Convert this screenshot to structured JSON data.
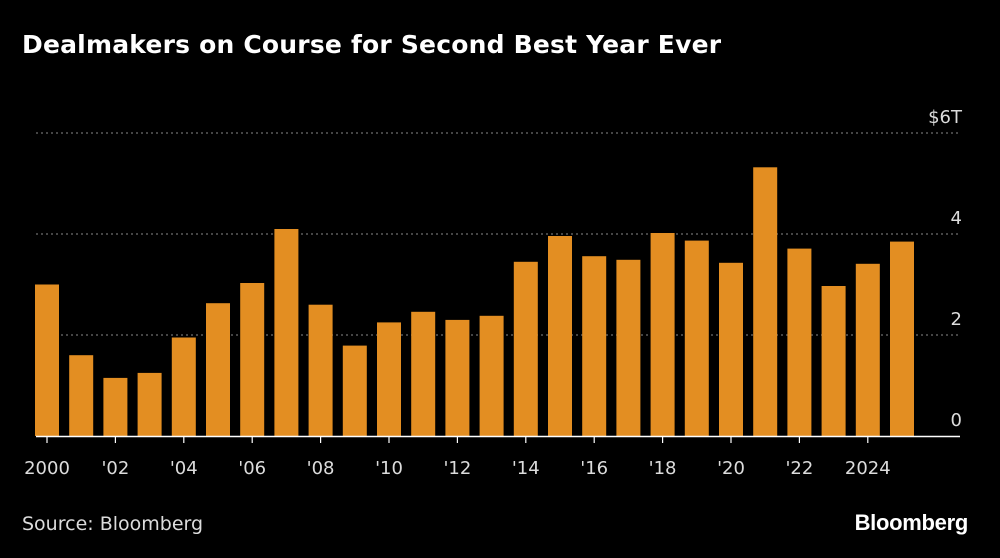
{
  "chart_data": {
    "type": "bar",
    "title": "Dealmakers on Course for Second Best Year Ever",
    "xlabel": "",
    "ylabel": "",
    "ylim": [
      0,
      6
    ],
    "y_ticks": [
      0,
      2,
      4,
      6
    ],
    "y_tick_labels": [
      "0",
      "2",
      "4",
      "$6T"
    ],
    "categories": [
      "2000",
      "2001",
      "2002",
      "2003",
      "2004",
      "2005",
      "2006",
      "2007",
      "2008",
      "2009",
      "2010",
      "2011",
      "2012",
      "2013",
      "2014",
      "2015",
      "2016",
      "2017",
      "2018",
      "2019",
      "2020",
      "2021",
      "2022",
      "2023",
      "2024",
      "2025"
    ],
    "x_tick_labels": [
      "2000",
      "'02",
      "'04",
      "'06",
      "'08",
      "'10",
      "'12",
      "'14",
      "'16",
      "'18",
      "'20",
      "'22",
      "2024"
    ],
    "values": [
      3.0,
      1.6,
      1.15,
      1.25,
      1.95,
      2.63,
      3.03,
      4.1,
      2.6,
      1.79,
      2.25,
      2.46,
      2.3,
      2.38,
      3.45,
      3.96,
      3.56,
      3.49,
      4.02,
      3.87,
      3.43,
      5.32,
      3.71,
      2.97,
      3.41,
      3.85
    ],
    "grid": true,
    "bar_color": "#E38E22",
    "source": "Source: Bloomberg",
    "brand": "Bloomberg"
  }
}
